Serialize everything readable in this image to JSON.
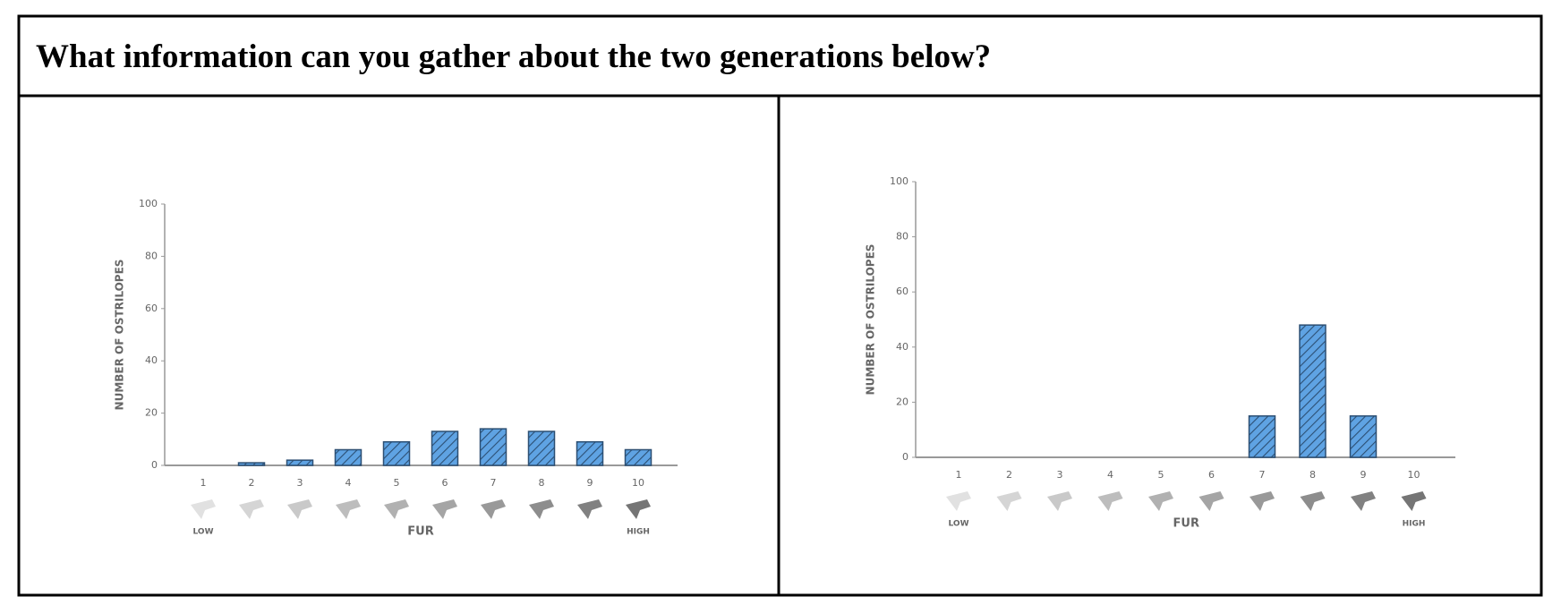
{
  "header": {
    "title": "What information can you gather about the two generations below?"
  },
  "chart_data": [
    {
      "type": "bar",
      "y_label": "NUMBER OF OSTRILOPES",
      "x_label": "FUR",
      "x_end_labels": [
        "LOW",
        "HIGH"
      ],
      "categories": [
        "1",
        "2",
        "3",
        "4",
        "5",
        "6",
        "7",
        "8",
        "9",
        "10"
      ],
      "values": [
        0,
        1,
        2,
        6,
        9,
        13,
        14,
        13,
        9,
        6
      ],
      "color": "#5fa3e3",
      "ylim": [
        0,
        100
      ],
      "yticks": [
        0,
        20,
        40,
        60,
        80,
        100
      ]
    },
    {
      "type": "bar",
      "y_label": "NUMBER OF OSTRILOPES",
      "x_label": "FUR",
      "x_end_labels": [
        "LOW",
        "HIGH"
      ],
      "categories": [
        "1",
        "2",
        "3",
        "4",
        "5",
        "6",
        "7",
        "8",
        "9",
        "10"
      ],
      "values": [
        0,
        0,
        0,
        0,
        0,
        0,
        15,
        48,
        15,
        0
      ],
      "color": "#5fa3e3",
      "ylim": [
        0,
        100
      ],
      "yticks": [
        0,
        20,
        40,
        60,
        80,
        100
      ]
    }
  ]
}
